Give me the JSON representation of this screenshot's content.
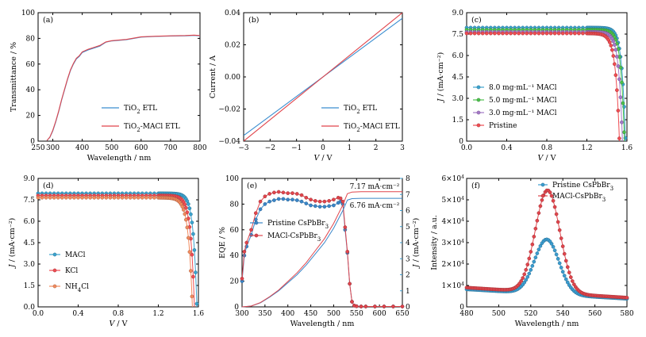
{
  "chart_data": [
    {
      "id": "a",
      "type": "line",
      "panel_label": "(a)",
      "xlabel": "Wavelength / nm",
      "ylabel": "Transmittance / %",
      "xlim": [
        250,
        800
      ],
      "ylim": [
        0,
        100
      ],
      "xticks": [
        250,
        300,
        400,
        500,
        600,
        700,
        800
      ],
      "yticks": [
        0,
        20,
        40,
        60,
        80,
        100
      ],
      "legend_position": "lower-right",
      "legend_labels_html": [
        "TiO<tspan baseline-shift='sub' font-size='7'>2</tspan> ETL",
        "TiO<tspan baseline-shift='sub' font-size='7'>2</tspan>-MACl ETL"
      ],
      "series": [
        {
          "name": "TiO2 ETL",
          "color": "#3b8ed0",
          "x": [
            280,
            290,
            300,
            310,
            320,
            330,
            340,
            350,
            360,
            370,
            380,
            390,
            400,
            420,
            440,
            460,
            480,
            500,
            550,
            600,
            650,
            700,
            750,
            780,
            800
          ],
          "y": [
            0.5,
            3,
            8,
            15,
            23,
            32,
            40,
            48,
            55,
            60,
            64,
            66,
            69,
            71,
            72.5,
            74,
            77,
            78,
            79,
            81,
            81.5,
            81.8,
            82,
            82.3,
            82
          ]
        },
        {
          "name": "TiO2-MACl ETL",
          "color": "#e0454c",
          "x": [
            280,
            290,
            300,
            310,
            320,
            330,
            340,
            350,
            360,
            370,
            380,
            390,
            400,
            420,
            440,
            460,
            480,
            500,
            550,
            600,
            650,
            700,
            750,
            780,
            800
          ],
          "y": [
            0.5,
            3.2,
            8.5,
            15.5,
            23.5,
            32.5,
            40.5,
            48.5,
            55.5,
            60.5,
            64.5,
            66.5,
            69.5,
            71.5,
            73,
            74.5,
            77.2,
            78.2,
            79.2,
            81.2,
            81.7,
            82,
            82.2,
            82.5,
            82.2
          ]
        }
      ]
    },
    {
      "id": "b",
      "type": "line",
      "panel_label": "(b)",
      "xlabel": "V / V",
      "ylabel": "Current / A",
      "xlim": [
        -3,
        3
      ],
      "ylim": [
        -0.04,
        0.04
      ],
      "xticks": [
        -3,
        -2,
        -1,
        0,
        1,
        2,
        3
      ],
      "yticks": [
        -0.04,
        -0.02,
        0.0,
        0.02,
        0.04
      ],
      "ytick_labels": [
        "-0.04",
        "-0.02",
        "0.00",
        "0.02",
        "0.04"
      ],
      "legend_position": "lower-right",
      "legend_labels_html": [
        "TiO<tspan baseline-shift='sub' font-size='7'>2</tspan> ETL",
        "TiO<tspan baseline-shift='sub' font-size='7'>2</tspan>-MACl ETL"
      ],
      "series": [
        {
          "name": "TiO2 ETL",
          "color": "#3b8ed0",
          "x": [
            -3,
            3
          ],
          "y": [
            -0.0365,
            0.0365
          ]
        },
        {
          "name": "TiO2-MACl ETL",
          "color": "#e0454c",
          "x": [
            -3,
            3
          ],
          "y": [
            -0.04,
            0.04
          ]
        }
      ]
    },
    {
      "id": "c",
      "type": "line",
      "panel_label": "(c)",
      "xlabel": "V / V",
      "ylabel": "J / (mA·cm⁻²)",
      "xlim": [
        0,
        1.6
      ],
      "ylim": [
        0,
        9
      ],
      "xticks": [
        0,
        0.4,
        0.8,
        1.2,
        1.6
      ],
      "xtick_labels": [
        "0.0",
        "0.4",
        "0.8",
        "1.2",
        "1.6"
      ],
      "yticks": [
        0,
        1.5,
        3.0,
        4.5,
        6.0,
        7.5,
        9.0
      ],
      "ytick_labels": [
        "0",
        "1.5",
        "3.0",
        "4.5",
        "6.0",
        "7.5",
        "9.0"
      ],
      "legend_position": "lower-left",
      "legend_labels": [
        "8.0 mg·mL⁻¹ MACl",
        "5.0 mg·mL⁻¹ MACl",
        "3.0 mg·mL⁻¹ MACl",
        "Pristine"
      ],
      "series": [
        {
          "name": "8.0 mg·mL⁻¹ MACl",
          "color": "#3ba3cf",
          "jsc": 7.95,
          "voc": 1.585,
          "curv": 0.036
        },
        {
          "name": "5.0 mg·mL⁻¹ MACl",
          "color": "#4cc04c",
          "jsc": 7.8,
          "voc": 1.575,
          "curv": 0.036
        },
        {
          "name": "3.0 mg·mL⁻¹ MACl",
          "color": "#a478c8",
          "jsc": 7.65,
          "voc": 1.555,
          "curv": 0.037
        },
        {
          "name": "Pristine",
          "color": "#ef4c52",
          "jsc": 7.55,
          "voc": 1.525,
          "curv": 0.039
        }
      ]
    },
    {
      "id": "d",
      "type": "line",
      "panel_label": "(d)",
      "xlabel": "V / V",
      "ylabel": "J / (mA·cm⁻²)",
      "xlim": [
        0,
        1.6
      ],
      "ylim": [
        0,
        9
      ],
      "xticks": [
        0,
        0.4,
        0.8,
        1.2,
        1.6
      ],
      "xtick_labels": [
        "0.0",
        "0.4",
        "0.8",
        "1.2",
        "1.6"
      ],
      "yticks": [
        0,
        1.5,
        3.0,
        4.5,
        6.0,
        7.5,
        9.0
      ],
      "ytick_labels": [
        "0.0",
        "1.5",
        "3.0",
        "4.5",
        "6.0",
        "7.5",
        "9.0"
      ],
      "legend_position": "lower-left",
      "legend_labels_html": [
        "MACl",
        "KCl",
        "NH<tspan baseline-shift='sub' font-size='7'>4</tspan>Cl"
      ],
      "series": [
        {
          "name": "MACl",
          "color": "#3ba3cf",
          "jsc": 7.95,
          "voc": 1.585,
          "curv": 0.036
        },
        {
          "name": "KCl",
          "color": "#ef4c52",
          "jsc": 7.8,
          "voc": 1.56,
          "curv": 0.038
        },
        {
          "name": "NH4Cl",
          "color": "#f28a5e",
          "jsc": 7.65,
          "voc": 1.54,
          "curv": 0.04
        }
      ]
    },
    {
      "id": "e",
      "type": "line",
      "panel_label": "(e)",
      "xlabel": "Wavelength / nm",
      "ylabel": "EQE / %",
      "y2label": "J / (mA·cm⁻²)",
      "xlim": [
        300,
        650
      ],
      "ylim": [
        0,
        100
      ],
      "y2lim": [
        0,
        8
      ],
      "xticks": [
        300,
        350,
        400,
        450,
        500,
        550,
        600,
        650
      ],
      "yticks": [
        0,
        20,
        40,
        60,
        80,
        100
      ],
      "y2ticks": [
        0,
        1,
        2,
        3,
        4,
        5,
        6,
        7,
        8
      ],
      "legend_position": "middle-left",
      "legend_labels_html": [
        "Pristine CsPbBr<tspan baseline-shift='sub' font-size='7'>3</tspan>",
        "MACl-CsPbBr<tspan baseline-shift='sub' font-size='7'>3</tspan>"
      ],
      "annotations": [
        "7.17 mA·cm⁻²",
        "6.76 mA·cm⁻²"
      ],
      "series": [
        {
          "name": "Pristine CsPbBr3",
          "color": "#3a86c8",
          "x": [
            300,
            305,
            310,
            320,
            330,
            340,
            350,
            360,
            370,
            380,
            390,
            400,
            410,
            420,
            430,
            440,
            450,
            460,
            470,
            480,
            490,
            500,
            510,
            515,
            520,
            525,
            530,
            535,
            540,
            545,
            550,
            560,
            570,
            580,
            590,
            600,
            610,
            620,
            630,
            640,
            650
          ],
          "y": [
            20,
            40,
            47,
            56,
            68,
            76,
            80,
            82,
            83,
            84,
            84,
            83.5,
            83.5,
            83,
            82,
            80.5,
            79,
            78.5,
            78,
            78,
            78.5,
            79,
            81,
            82,
            80,
            60,
            42,
            18,
            4,
            1,
            0.5,
            0.3,
            0.3,
            0.3,
            0.3,
            0.3,
            0.3,
            0.3,
            0.3,
            0.3,
            0.3
          ]
        },
        {
          "name": "MACl-CsPbBr3",
          "color": "#e0454c",
          "x": [
            300,
            305,
            310,
            320,
            330,
            340,
            350,
            360,
            370,
            380,
            390,
            400,
            410,
            420,
            430,
            440,
            450,
            460,
            470,
            480,
            490,
            500,
            510,
            515,
            520,
            525,
            530,
            535,
            540,
            545,
            550,
            560,
            570,
            580,
            590,
            600,
            610,
            620,
            630,
            640,
            650
          ],
          "y": [
            22,
            43,
            50,
            60,
            73,
            82,
            86,
            88,
            89,
            89.5,
            89,
            88.5,
            88.5,
            88,
            87,
            85,
            83.5,
            82.5,
            82,
            82,
            82.5,
            83.5,
            85,
            84.5,
            82,
            62,
            43,
            18,
            4,
            1,
            0.5,
            0.3,
            0.3,
            0.3,
            0.3,
            0.3,
            0.3,
            0.3,
            0.3,
            0.3,
            0.3
          ]
        },
        {
          "name": "Pristine CsPbBr3 integrated J",
          "color": "#3a86c8",
          "axis": "right",
          "x": [
            300,
            320,
            340,
            360,
            380,
            400,
            420,
            440,
            460,
            480,
            500,
            520,
            530,
            540,
            560,
            600,
            650
          ],
          "y": [
            0,
            0.05,
            0.25,
            0.6,
            1.0,
            1.5,
            2.0,
            2.6,
            3.3,
            4.0,
            4.9,
            6.0,
            6.65,
            6.74,
            6.76,
            6.76,
            6.76
          ]
        },
        {
          "name": "MACl-CsPbBr3 integrated J",
          "color": "#e0454c",
          "axis": "right",
          "x": [
            300,
            320,
            340,
            360,
            380,
            400,
            420,
            440,
            460,
            480,
            500,
            520,
            530,
            540,
            560,
            600,
            650
          ],
          "y": [
            0,
            0.05,
            0.27,
            0.63,
            1.05,
            1.58,
            2.12,
            2.75,
            3.5,
            4.25,
            5.2,
            6.35,
            7.05,
            7.15,
            7.17,
            7.17,
            7.17
          ]
        }
      ]
    },
    {
      "id": "f",
      "type": "line",
      "panel_label": "(f)",
      "xlabel": "Wavelength / nm",
      "ylabel": "Intensity / a.u.",
      "xlim": [
        480,
        580
      ],
      "ylim": [
        0,
        60000
      ],
      "xticks": [
        480,
        500,
        520,
        540,
        560,
        580
      ],
      "yticks": [
        0,
        10000,
        20000,
        30000,
        40000,
        50000,
        60000
      ],
      "legend_position": "top-right",
      "legend_labels_html": [
        "Pristine CsPbBr<tspan baseline-shift='sub' font-size='7'>3</tspan>",
        "MACl-CsPbBr<tspan baseline-shift='sub' font-size='7'>3</tspan>"
      ],
      "series": [
        {
          "name": "Pristine CsPbBr3",
          "color": "#3a9ccf",
          "peak": 31500,
          "center": 530,
          "fwhm": 18,
          "base_left": 8200,
          "base_right": 3800
        },
        {
          "name": "MACl-CsPbBr3",
          "color": "#e0454c",
          "peak": 54500,
          "center": 530.5,
          "fwhm": 18,
          "base_left": 9000,
          "base_right": 4300
        }
      ]
    }
  ]
}
